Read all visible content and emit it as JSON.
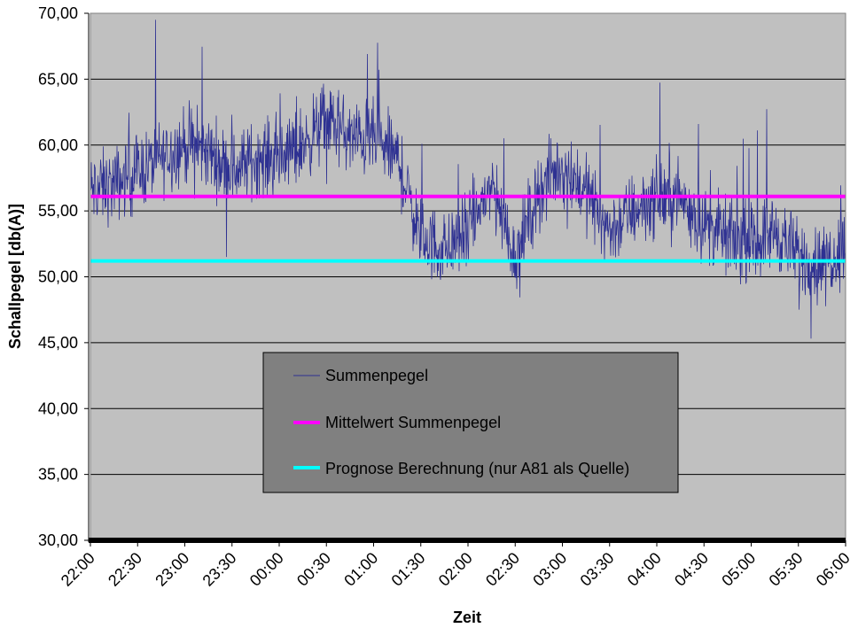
{
  "chart_data": {
    "type": "line",
    "title": "",
    "xlabel": "Zeit",
    "ylabel": "Schallpegel [db(A)]",
    "ylim": [
      30,
      70
    ],
    "y_ticks": [
      "30,00",
      "35,00",
      "40,00",
      "45,00",
      "50,00",
      "55,00",
      "60,00",
      "65,00",
      "70,00"
    ],
    "x_ticks": [
      "22:00",
      "22:30",
      "23:00",
      "23:30",
      "00:00",
      "00:30",
      "01:00",
      "01:30",
      "02:00",
      "02:30",
      "03:00",
      "03:30",
      "04:00",
      "04:30",
      "05:00",
      "05:30",
      "06:00"
    ],
    "grid": true,
    "legend_position": "center",
    "colors": {
      "plot_background": "#c0c0c0",
      "summenpegel": "#2e3192",
      "mittelwert": "#ff00ff",
      "prognose": "#00ffff",
      "legend_background": "#808080"
    },
    "series": [
      {
        "name": "Summenpegel",
        "x": [
          "22:00",
          "22:15",
          "22:30",
          "22:45",
          "23:00",
          "23:15",
          "23:30",
          "23:45",
          "00:00",
          "00:15",
          "00:30",
          "00:45",
          "01:00",
          "01:15",
          "01:30",
          "01:45",
          "02:00",
          "02:15",
          "02:30",
          "02:45",
          "03:00",
          "03:15",
          "03:30",
          "03:45",
          "04:00",
          "04:15",
          "04:30",
          "04:45",
          "05:00",
          "05:15",
          "05:30",
          "05:45",
          "06:00"
        ],
        "values": [
          56.5,
          57.0,
          58.0,
          59.0,
          60.0,
          59.5,
          58.0,
          59.0,
          59.0,
          60.0,
          62.0,
          60.5,
          60.5,
          59.0,
          53.0,
          52.0,
          53.5,
          57.0,
          51.5,
          56.5,
          58.5,
          56.5,
          53.5,
          55.0,
          56.0,
          56.0,
          54.0,
          53.0,
          52.5,
          53.5,
          51.5,
          51.0,
          52.5
        ]
      },
      {
        "name": "Mittelwert Summenpegel",
        "x": [
          "22:00",
          "06:00"
        ],
        "values": [
          56.1,
          56.1
        ]
      },
      {
        "name": "Prognose Berechnung (nur A81 als Quelle)",
        "x": [
          "22:00",
          "06:00"
        ],
        "values": [
          51.2,
          51.2
        ]
      }
    ]
  }
}
